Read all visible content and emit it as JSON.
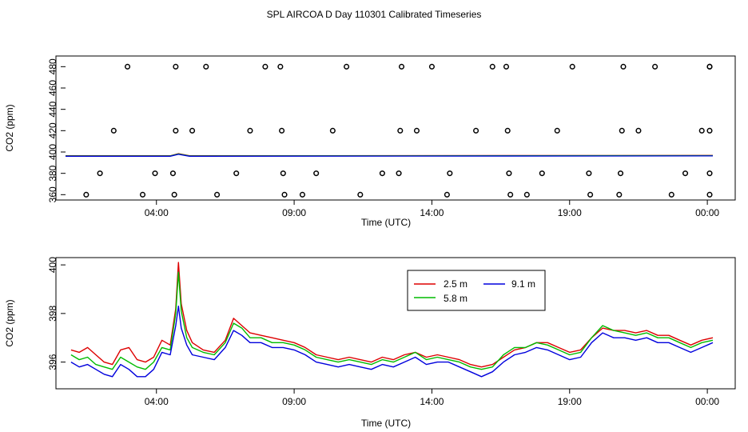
{
  "title": "SPL AIRCOA D  Day 110301  Calibrated Timeseries",
  "colors": {
    "s25": "#dd0000",
    "s58": "#00bb00",
    "s91": "#0000dd",
    "circle": "#000000"
  },
  "chart_data": [
    {
      "type": "scatter",
      "xlabel": "Time (UTC)",
      "ylabel": "CO2 (ppm)",
      "xticks": [
        "04:00",
        "09:00",
        "14:00",
        "19:00",
        "00:00"
      ],
      "yticks": [
        "360",
        "380",
        "400",
        "420",
        "440",
        "460",
        "480"
      ],
      "ylim": [
        355,
        490
      ],
      "xlim": [
        0.7,
        24.2
      ],
      "grid": false,
      "points": [
        {
          "x": 1.45,
          "y": 360
        },
        {
          "x": 1.95,
          "y": 380
        },
        {
          "x": 2.45,
          "y": 420
        },
        {
          "x": 2.95,
          "y": 480
        },
        {
          "x": 3.5,
          "y": 360
        },
        {
          "x": 3.95,
          "y": 380
        },
        {
          "x": 4.6,
          "y": 380
        },
        {
          "x": 4.65,
          "y": 360
        },
        {
          "x": 4.7,
          "y": 420
        },
        {
          "x": 4.7,
          "y": 480
        },
        {
          "x": 5.3,
          "y": 420
        },
        {
          "x": 5.8,
          "y": 480
        },
        {
          "x": 6.2,
          "y": 360
        },
        {
          "x": 6.9,
          "y": 380
        },
        {
          "x": 7.4,
          "y": 420
        },
        {
          "x": 7.95,
          "y": 480
        },
        {
          "x": 8.5,
          "y": 480
        },
        {
          "x": 8.55,
          "y": 420
        },
        {
          "x": 8.6,
          "y": 380
        },
        {
          "x": 8.65,
          "y": 360
        },
        {
          "x": 9.3,
          "y": 360
        },
        {
          "x": 9.8,
          "y": 380
        },
        {
          "x": 10.4,
          "y": 420
        },
        {
          "x": 10.9,
          "y": 480
        },
        {
          "x": 11.4,
          "y": 360
        },
        {
          "x": 12.2,
          "y": 380
        },
        {
          "x": 12.8,
          "y": 380
        },
        {
          "x": 12.85,
          "y": 420
        },
        {
          "x": 12.9,
          "y": 480
        },
        {
          "x": 13.45,
          "y": 420
        },
        {
          "x": 14.0,
          "y": 480
        },
        {
          "x": 14.55,
          "y": 360
        },
        {
          "x": 14.65,
          "y": 380
        },
        {
          "x": 15.6,
          "y": 420
        },
        {
          "x": 16.2,
          "y": 480
        },
        {
          "x": 16.7,
          "y": 480
        },
        {
          "x": 16.75,
          "y": 420
        },
        {
          "x": 16.8,
          "y": 380
        },
        {
          "x": 16.85,
          "y": 360
        },
        {
          "x": 17.45,
          "y": 360
        },
        {
          "x": 18.0,
          "y": 380
        },
        {
          "x": 18.55,
          "y": 420
        },
        {
          "x": 19.1,
          "y": 480
        },
        {
          "x": 19.7,
          "y": 380
        },
        {
          "x": 19.75,
          "y": 360
        },
        {
          "x": 20.8,
          "y": 360
        },
        {
          "x": 20.85,
          "y": 380
        },
        {
          "x": 20.9,
          "y": 420
        },
        {
          "x": 20.95,
          "y": 480
        },
        {
          "x": 21.5,
          "y": 420
        },
        {
          "x": 22.1,
          "y": 480
        },
        {
          "x": 22.7,
          "y": 360
        },
        {
          "x": 23.2,
          "y": 380
        },
        {
          "x": 23.8,
          "y": 420
        },
        {
          "x": 24.3,
          "y": 480
        },
        {
          "x": 24.8,
          "y": 480
        },
        {
          "x": 24.85,
          "y": 420
        },
        {
          "x": 24.9,
          "y": 380
        },
        {
          "x": 24.95,
          "y": 360
        }
      ],
      "lines": [
        {
          "name": "2.5 m",
          "x": [
            0.7,
            4.5,
            4.8,
            5.2,
            24.2
          ],
          "values": [
            396.5,
            396.5,
            398.5,
            396.5,
            396.8
          ]
        },
        {
          "name": "5.8 m",
          "x": [
            0.7,
            4.5,
            4.8,
            5.2,
            24.2
          ],
          "values": [
            396.3,
            396.3,
            398.2,
            396.3,
            396.6
          ]
        },
        {
          "name": "9.1 m",
          "x": [
            0.7,
            4.5,
            4.8,
            5.2,
            24.2
          ],
          "values": [
            396.0,
            396.0,
            397.8,
            396.0,
            396.3
          ]
        }
      ]
    },
    {
      "type": "line",
      "xlabel": "Time (UTC)",
      "ylabel": "CO2 (ppm)",
      "xticks": [
        "04:00",
        "09:00",
        "14:00",
        "19:00",
        "00:00"
      ],
      "yticks": [
        "396",
        "398",
        "400"
      ],
      "ylim": [
        394.9,
        400.3
      ],
      "xlim": [
        0.7,
        24.2
      ],
      "grid": false,
      "legend_position": "top-center",
      "x": [
        0.9,
        1.2,
        1.5,
        1.8,
        2.1,
        2.4,
        2.7,
        3.0,
        3.3,
        3.6,
        3.9,
        4.2,
        4.5,
        4.7,
        4.8,
        4.9,
        5.1,
        5.3,
        5.7,
        6.1,
        6.5,
        6.8,
        7.1,
        7.4,
        7.8,
        8.2,
        8.6,
        9.0,
        9.4,
        9.8,
        10.2,
        10.6,
        11.0,
        11.4,
        11.8,
        12.2,
        12.6,
        13.0,
        13.4,
        13.8,
        14.2,
        14.6,
        15.0,
        15.4,
        15.8,
        16.2,
        16.6,
        17.0,
        17.4,
        17.8,
        18.2,
        18.6,
        19.0,
        19.4,
        19.8,
        20.2,
        20.6,
        21.0,
        21.4,
        21.8,
        22.2,
        22.6,
        23.0,
        23.4,
        23.8,
        24.2
      ],
      "series": [
        {
          "name": "2.5 m",
          "values": [
            396.5,
            396.4,
            396.6,
            396.3,
            396.0,
            395.9,
            396.5,
            396.6,
            396.1,
            396.0,
            396.2,
            396.9,
            396.7,
            398.2,
            400.1,
            398.4,
            397.3,
            396.8,
            396.5,
            396.4,
            396.9,
            397.8,
            397.5,
            397.2,
            397.1,
            397.0,
            396.9,
            396.8,
            396.6,
            396.3,
            396.2,
            396.1,
            396.2,
            396.1,
            396.0,
            396.2,
            396.1,
            396.3,
            396.4,
            396.2,
            396.3,
            396.2,
            396.1,
            395.9,
            395.8,
            395.9,
            396.2,
            396.5,
            396.6,
            396.8,
            396.8,
            396.6,
            396.4,
            396.5,
            397.0,
            397.4,
            397.3,
            397.3,
            397.2,
            397.3,
            397.1,
            397.1,
            396.9,
            396.7,
            396.9,
            397.0
          ]
        },
        {
          "name": "5.8 m",
          "values": [
            396.3,
            396.1,
            396.2,
            395.9,
            395.8,
            395.7,
            396.2,
            396.0,
            395.8,
            395.7,
            396.0,
            396.6,
            396.5,
            398.0,
            399.7,
            398.1,
            397.0,
            396.6,
            396.4,
            396.3,
            396.8,
            397.6,
            397.4,
            397.0,
            397.0,
            396.8,
            396.8,
            396.7,
            396.5,
            396.2,
            396.1,
            396.0,
            396.1,
            396.0,
            395.9,
            396.1,
            396.0,
            396.2,
            396.4,
            396.1,
            396.2,
            396.1,
            396.0,
            395.8,
            395.7,
            395.8,
            396.3,
            396.6,
            396.6,
            396.8,
            396.7,
            396.5,
            396.3,
            396.4,
            397.0,
            397.5,
            397.3,
            397.2,
            397.1,
            397.2,
            397.0,
            397.0,
            396.8,
            396.6,
            396.8,
            396.9
          ]
        },
        {
          "name": "9.1 m",
          "values": [
            396.0,
            395.8,
            395.9,
            395.7,
            395.5,
            395.4,
            395.9,
            395.7,
            395.4,
            395.4,
            395.7,
            396.4,
            396.3,
            397.5,
            398.3,
            397.4,
            396.7,
            396.3,
            396.2,
            396.1,
            396.6,
            397.3,
            397.1,
            396.8,
            396.8,
            396.6,
            396.6,
            396.5,
            396.3,
            396.0,
            395.9,
            395.8,
            395.9,
            395.8,
            395.7,
            395.9,
            395.8,
            396.0,
            396.2,
            395.9,
            396.0,
            396.0,
            395.8,
            395.6,
            395.4,
            395.6,
            396.0,
            396.3,
            396.4,
            396.6,
            396.5,
            396.3,
            396.1,
            396.2,
            396.8,
            397.2,
            397.0,
            397.0,
            396.9,
            397.0,
            396.8,
            396.8,
            396.6,
            396.4,
            396.6,
            396.8
          ]
        }
      ]
    }
  ]
}
